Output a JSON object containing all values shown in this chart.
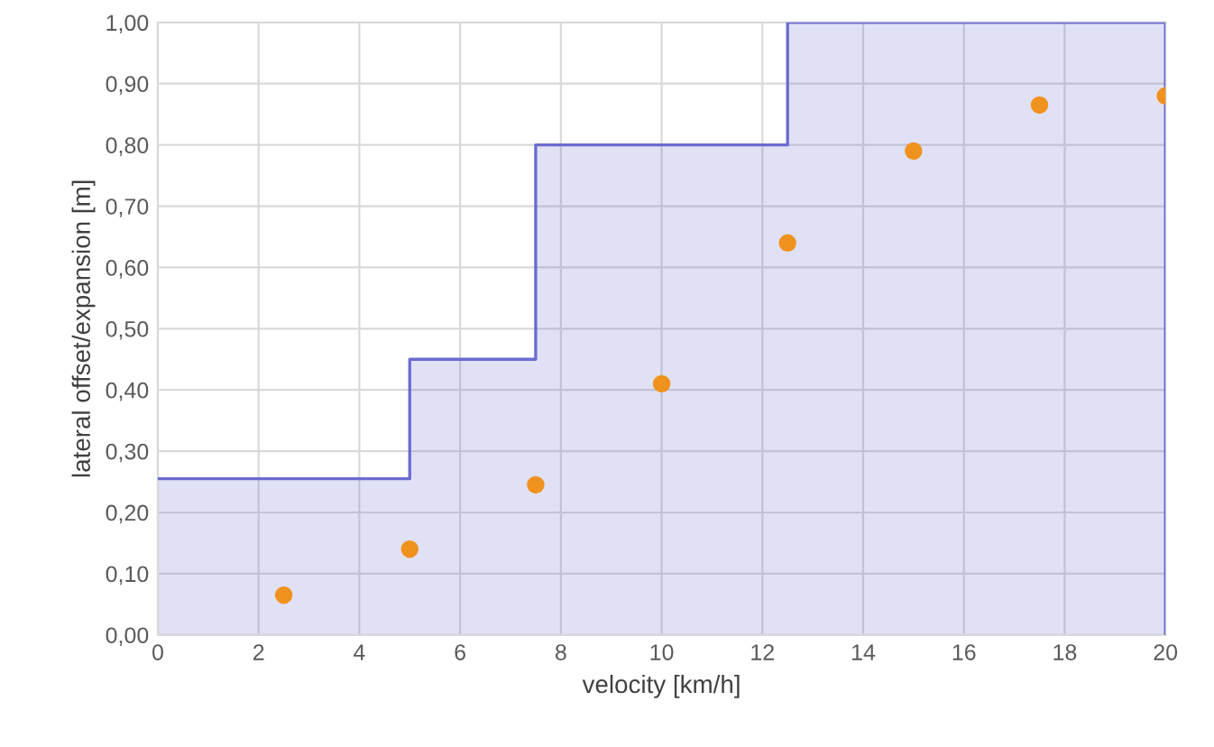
{
  "chart_data": {
    "type": "area",
    "xlabel": "velocity [km/h]",
    "ylabel": "lateral offset/expansion [m]",
    "xlim": [
      0,
      20
    ],
    "xticks": [
      0,
      2,
      4,
      6,
      8,
      10,
      12,
      14,
      16,
      18,
      20
    ],
    "ylim": [
      0,
      1
    ],
    "yticks": [
      {
        "value": 0,
        "label": "0,00"
      },
      {
        "value": 0.1,
        "label": "0,10"
      },
      {
        "value": 0.2,
        "label": "0,20"
      },
      {
        "value": 0.3,
        "label": "0,30"
      },
      {
        "value": 0.4,
        "label": "0,40"
      },
      {
        "value": 0.5,
        "label": "0,50"
      },
      {
        "value": 0.6,
        "label": "0,60"
      },
      {
        "value": 0.7,
        "label": "0,70"
      },
      {
        "value": 0.8,
        "label": "0,80"
      },
      {
        "value": 0.9,
        "label": "0,90"
      },
      {
        "value": 1,
        "label": "1,00"
      }
    ],
    "grid": true,
    "series": [
      {
        "color": "#6b6bd0",
        "x": [
          0,
          5,
          5,
          7.5,
          7.5,
          12.5,
          12.5,
          20,
          20
        ],
        "values": [
          0.255,
          0.255,
          0.45,
          0.45,
          0.8,
          0.8,
          1.0,
          1.0,
          0
        ]
      },
      {
        "type": "scatter",
        "color": "#f0921e",
        "marker": "circle",
        "x": [
          2.5,
          5,
          7.5,
          10,
          12.5,
          15,
          17.5,
          20
        ],
        "values": [
          0.065,
          0.14,
          0.245,
          0.41,
          0.64,
          0.79,
          0.865,
          0.88
        ]
      }
    ]
  }
}
